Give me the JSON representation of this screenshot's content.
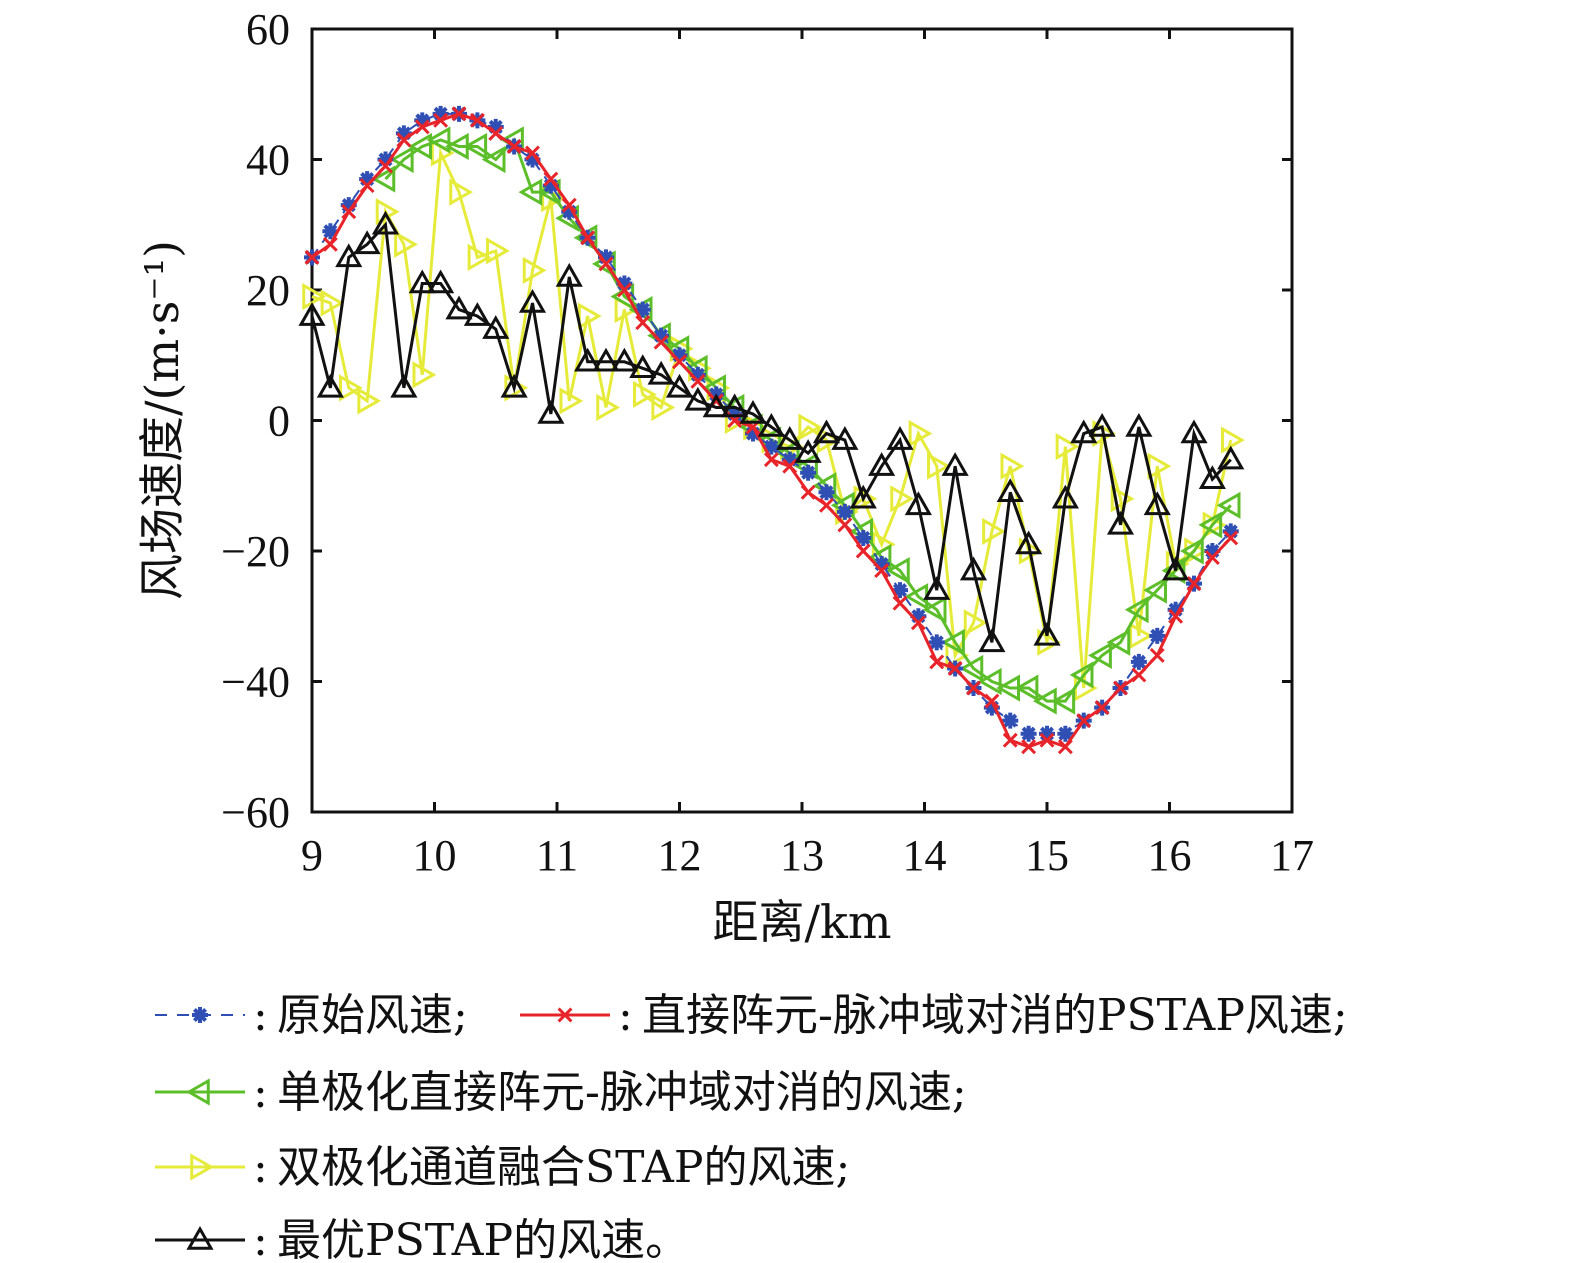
{
  "chart_data": {
    "type": "line",
    "title": "",
    "xlabel": "距离/km",
    "ylabel": "风场速度/(m·s⁻¹)",
    "xlim": [
      9,
      17
    ],
    "ylim": [
      -60,
      60
    ],
    "xticks": [
      9,
      10,
      11,
      12,
      13,
      14,
      15,
      16,
      17
    ],
    "yticks": [
      60,
      40,
      20,
      0,
      -20,
      -40,
      -60
    ],
    "ytick_labels": [
      "60",
      "40",
      "20",
      "0",
      "−20",
      "−40",
      "−60"
    ],
    "grid": false,
    "legend_placement": "bottom",
    "x_start": 9.0,
    "x_step": 0.15,
    "series": [
      {
        "name": "原始风速;",
        "color": "#2f4fb5",
        "marker": "asterisk",
        "dash": true,
        "values": [
          25,
          29,
          33,
          37,
          40,
          44,
          46,
          47,
          47,
          46,
          45,
          42,
          40,
          36,
          32,
          28,
          25,
          21,
          17,
          13,
          10,
          7,
          4,
          1,
          -2,
          -4,
          -6,
          -8,
          -11,
          -14,
          -18,
          -22,
          -26,
          -30,
          -34,
          -38,
          -41,
          -44,
          -46,
          -48,
          -48,
          -48,
          -46,
          -44,
          -41,
          -37,
          -33,
          -29,
          -25,
          -20,
          -17
        ]
      },
      {
        "name": "直接阵元-脉冲域对消的PSTAP风速;",
        "color": "#e8242b",
        "marker": "x",
        "dash": false,
        "values": [
          25,
          27,
          32,
          36,
          39,
          43,
          45,
          46,
          47,
          46,
          44,
          42,
          41,
          37,
          33,
          28,
          24,
          20,
          15,
          12,
          9,
          6,
          3,
          0,
          -1,
          -6,
          -7,
          -11,
          -13,
          -16,
          -20,
          -23,
          -28,
          -31,
          -37,
          -38,
          -41,
          -43,
          -49,
          -50,
          -49,
          -50,
          -46,
          -44,
          -41,
          -39,
          -36,
          -30,
          -25,
          -21,
          -18
        ]
      },
      {
        "name": "单极化直接阵元-脉冲域对消的风速;",
        "color": "#5cbf2a",
        "marker": "tri-left",
        "dash": false,
        "values": [
          null,
          null,
          null,
          null,
          37,
          40,
          42,
          43,
          42,
          42,
          40,
          43,
          35,
          35,
          31,
          28,
          24,
          19,
          17,
          13,
          11,
          8,
          5,
          2,
          -1,
          -3,
          -5,
          -7,
          -10,
          -13,
          -17,
          -21,
          -23,
          -27,
          -29,
          -34,
          -38,
          -40,
          -41,
          -41,
          -43,
          -43,
          -39,
          -36,
          -34,
          -29,
          -26,
          -23,
          -20,
          -16,
          -13
        ]
      },
      {
        "name": "双极化通道融合STAP的风速;",
        "color": "#e6eb3a",
        "marker": "tri-right",
        "dash": false,
        "values": [
          19,
          18,
          5,
          3,
          32,
          27,
          7,
          41,
          35,
          25,
          26,
          5,
          23,
          34,
          3,
          16,
          2,
          17,
          4,
          2,
          11,
          8,
          5,
          0,
          -1,
          -3,
          -4,
          -1,
          -3,
          -14,
          -12,
          -19,
          -12,
          -2,
          -7,
          -36,
          -31,
          -17,
          -7,
          -20,
          -34,
          -4,
          -41,
          -2,
          -12,
          -33,
          -7,
          -22,
          -20,
          -16,
          -3
        ]
      },
      {
        "name": "最优PSTAP的风速。",
        "color": "#111111",
        "marker": "tri-up",
        "dash": false,
        "values": [
          16,
          5,
          25,
          27,
          30,
          5,
          21,
          21,
          17,
          16,
          14,
          5,
          18,
          1,
          22,
          9,
          9,
          9,
          8,
          7,
          5,
          3,
          2,
          2,
          1,
          -1,
          -3,
          -5,
          -2,
          -3,
          -12,
          -7,
          -3,
          -13,
          -26,
          -7,
          -23,
          -34,
          -11,
          -19,
          -33,
          -12,
          -2,
          -1,
          -16,
          -1,
          -13,
          -23,
          -2,
          -9,
          -6
        ]
      }
    ]
  },
  "legend": {
    "sep": ":"
  }
}
